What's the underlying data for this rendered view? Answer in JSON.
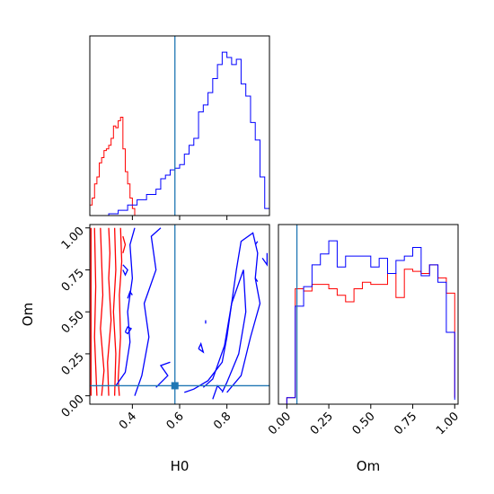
{
  "chart_data": {
    "type": "corner",
    "parameters": [
      "H0",
      "Om"
    ],
    "truth": {
      "H0": 0.58,
      "Om": 0.06
    },
    "colors": {
      "run_red": "#ff0000",
      "run_blue": "#0000ff",
      "truth_line": "#1f77b4",
      "axes": "#000000"
    },
    "panels": {
      "hist_H0": {
        "xlim": [
          0.22,
          0.98
        ],
        "ticks": [
          0.4,
          0.6,
          0.8
        ],
        "tick_labels_shown": false,
        "yticks": "none",
        "series": [
          {
            "color": "#ff0000",
            "bin_edges": [
              0.22,
              0.23,
              0.24,
              0.25,
              0.26,
              0.27,
              0.28,
              0.29,
              0.3,
              0.31,
              0.32,
              0.33,
              0.34,
              0.35,
              0.36,
              0.37,
              0.38,
              0.39,
              0.4,
              0.41
            ],
            "counts": [
              0.6,
              1.0,
              1.8,
              2.2,
              3.0,
              3.3,
              3.7,
              3.8,
              4.0,
              4.4,
              5.1,
              5.0,
              5.4,
              5.6,
              3.8,
              2.5,
              1.8,
              1.0,
              0.4
            ]
          },
          {
            "color": "#0000ff",
            "bin_edges": [
              0.3,
              0.34,
              0.38,
              0.42,
              0.46,
              0.5,
              0.52,
              0.54,
              0.56,
              0.58,
              0.6,
              0.62,
              0.64,
              0.66,
              0.68,
              0.7,
              0.72,
              0.74,
              0.76,
              0.78,
              0.8,
              0.82,
              0.84,
              0.86,
              0.88,
              0.9,
              0.92,
              0.94,
              0.96,
              0.98
            ],
            "counts": [
              0.1,
              0.3,
              0.6,
              0.9,
              1.2,
              1.5,
              2.1,
              2.3,
              2.6,
              2.7,
              2.9,
              3.5,
              4.0,
              4.4,
              5.9,
              6.3,
              7.0,
              7.8,
              8.6,
              9.3,
              9.0,
              8.6,
              8.9,
              7.5,
              6.8,
              5.3,
              4.3,
              2.2,
              0.4
            ]
          }
        ]
      },
      "hist_Om": {
        "xlim": [
          -0.05,
          1.02
        ],
        "ticks": [
          0.0,
          0.25,
          0.5,
          0.75,
          1.0
        ],
        "tick_labels": [
          "0.00",
          "0.25",
          "0.50",
          "0.75",
          "1.00"
        ],
        "xlabel": "Om",
        "yticks": "none",
        "series": [
          {
            "color": "#ff0000",
            "bin_edges": [
              0.0,
              0.05,
              0.1,
              0.15,
              0.2,
              0.25,
              0.3,
              0.35,
              0.4,
              0.45,
              0.5,
              0.55,
              0.6,
              0.65,
              0.7,
              0.75,
              0.8,
              0.85,
              0.9,
              0.95,
              1.0
            ],
            "counts": [
              0.3,
              5.3,
              5.2,
              5.5,
              5.5,
              5.3,
              5.0,
              4.7,
              5.3,
              5.6,
              5.5,
              5.5,
              6.0,
              4.9,
              6.2,
              6.1,
              6.0,
              6.4,
              5.8,
              5.1,
              0.3
            ]
          },
          {
            "color": "#0000ff",
            "bin_edges": [
              0.0,
              0.05,
              0.1,
              0.15,
              0.2,
              0.25,
              0.3,
              0.35,
              0.4,
              0.45,
              0.5,
              0.55,
              0.6,
              0.65,
              0.7,
              0.75,
              0.8,
              0.85,
              0.9,
              0.95,
              1.0
            ],
            "counts": [
              0.3,
              4.5,
              5.4,
              6.4,
              6.9,
              7.5,
              6.3,
              6.8,
              6.8,
              6.8,
              6.3,
              6.7,
              6.0,
              6.6,
              6.8,
              7.2,
              5.9,
              6.4,
              5.6,
              3.3,
              0.2
            ]
          }
        ]
      },
      "contour_H0_Om": {
        "xlim": [
          0.22,
          0.98
        ],
        "ylim": [
          -0.05,
          1.02
        ],
        "xticks": [
          0.4,
          0.6,
          0.8
        ],
        "xtick_labels": [
          "0.4",
          "0.6",
          "0.8"
        ],
        "yticks": [
          0.0,
          0.25,
          0.5,
          0.75,
          1.0
        ],
        "ytick_labels": [
          "0.00",
          "0.25",
          "0.50",
          "0.75",
          "1.00"
        ],
        "xlabel": "H0",
        "ylabel": "Om",
        "contours": [
          {
            "color": "#ff0000",
            "points": [
              [
                0.225,
                0.0
              ],
              [
                0.225,
                1.0
              ]
            ]
          },
          {
            "color": "#ff0000",
            "points": [
              [
                0.25,
                0.0
              ],
              [
                0.24,
                0.35
              ],
              [
                0.245,
                0.65
              ],
              [
                0.24,
                1.0
              ]
            ]
          },
          {
            "color": "#ff0000",
            "points": [
              [
                0.27,
                0.0
              ],
              [
                0.28,
                0.15
              ],
              [
                0.265,
                0.4
              ],
              [
                0.275,
                0.6
              ],
              [
                0.27,
                0.8
              ],
              [
                0.265,
                1.0
              ]
            ]
          },
          {
            "color": "#ff0000",
            "points": [
              [
                0.3,
                0.0
              ],
              [
                0.295,
                0.2
              ],
              [
                0.31,
                0.45
              ],
              [
                0.3,
                0.7
              ],
              [
                0.305,
                0.85
              ],
              [
                0.3,
                1.0
              ]
            ]
          },
          {
            "color": "#ff0000",
            "points": [
              [
                0.325,
                0.0
              ],
              [
                0.33,
                0.25
              ],
              [
                0.32,
                0.5
              ],
              [
                0.33,
                0.75
              ],
              [
                0.325,
                1.0
              ]
            ]
          },
          {
            "color": "#ff0000",
            "points": [
              [
                0.345,
                0.0
              ],
              [
                0.34,
                0.1
              ],
              [
                0.35,
                0.35
              ],
              [
                0.345,
                0.6
              ],
              [
                0.355,
                0.8
              ],
              [
                0.35,
                1.0
              ]
            ]
          },
          {
            "color": "#ff0000",
            "points": [
              [
                0.36,
                0.95
              ],
              [
                0.37,
                0.9
              ],
              [
                0.36,
                0.85
              ]
            ]
          },
          {
            "color": "#0000ff",
            "points": [
              [
                0.33,
                0.06
              ],
              [
                0.37,
                0.14
              ],
              [
                0.39,
                0.32
              ],
              [
                0.38,
                0.5
              ],
              [
                0.4,
                0.7
              ],
              [
                0.39,
                0.9
              ],
              [
                0.41,
                1.0
              ]
            ]
          },
          {
            "color": "#0000ff",
            "points": [
              [
                0.41,
                0.0
              ],
              [
                0.44,
                0.12
              ],
              [
                0.47,
                0.35
              ],
              [
                0.45,
                0.55
              ],
              [
                0.5,
                0.75
              ],
              [
                0.48,
                0.95
              ],
              [
                0.52,
                1.0
              ]
            ]
          },
          {
            "color": "#0000ff",
            "points": [
              [
                0.5,
                0.05
              ],
              [
                0.55,
                0.12
              ],
              [
                0.52,
                0.18
              ],
              [
                0.56,
                0.2
              ]
            ]
          },
          {
            "color": "#0000ff",
            "points": [
              [
                0.36,
                0.78
              ],
              [
                0.38,
                0.75
              ],
              [
                0.37,
                0.72
              ],
              [
                0.36,
                0.75
              ]
            ]
          },
          {
            "color": "#0000ff",
            "points": [
              [
                0.38,
                0.58
              ],
              [
                0.39,
                0.62
              ],
              [
                0.4,
                0.6
              ]
            ]
          },
          {
            "color": "#0000ff",
            "points": [
              [
                0.37,
                0.38
              ],
              [
                0.38,
                0.41
              ],
              [
                0.395,
                0.4
              ],
              [
                0.38,
                0.37
              ],
              [
                0.37,
                0.38
              ]
            ]
          },
          {
            "color": "#0000ff",
            "points": [
              [
                0.62,
                0.02
              ],
              [
                0.66,
                0.04
              ],
              [
                0.72,
                0.09
              ],
              [
                0.78,
                0.2
              ],
              [
                0.8,
                0.35
              ],
              [
                0.82,
                0.55
              ],
              [
                0.84,
                0.75
              ],
              [
                0.86,
                0.92
              ],
              [
                0.91,
                0.97
              ],
              [
                0.93,
                0.85
              ],
              [
                0.92,
                0.7
              ],
              [
                0.94,
                0.55
              ],
              [
                0.9,
                0.35
              ],
              [
                0.86,
                0.12
              ],
              [
                0.8,
                0.02
              ]
            ]
          },
          {
            "color": "#0000ff",
            "points": [
              [
                0.7,
                0.05
              ],
              [
                0.74,
                0.1
              ],
              [
                0.79,
                0.3
              ],
              [
                0.82,
                0.55
              ],
              [
                0.87,
                0.75
              ],
              [
                0.88,
                0.5
              ],
              [
                0.85,
                0.25
              ],
              [
                0.8,
                0.08
              ],
              [
                0.78,
                0.02
              ]
            ]
          },
          {
            "color": "#0000ff",
            "points": [
              [
                0.74,
                -0.02
              ],
              [
                0.76,
                0.06
              ],
              [
                0.78,
                0.03
              ]
            ]
          },
          {
            "color": "#0000ff",
            "points": [
              [
                0.95,
                0.82
              ],
              [
                0.97,
                0.78
              ],
              [
                0.97,
                0.85
              ]
            ]
          },
          {
            "color": "#0000ff",
            "points": [
              [
                0.92,
                0.9
              ],
              [
                0.93,
                0.92
              ]
            ]
          },
          {
            "color": "#0000ff",
            "points": [
              [
                0.92,
                0.7
              ],
              [
                0.93,
                0.68
              ]
            ]
          },
          {
            "color": "#0000ff",
            "points": [
              [
                0.71,
                0.45
              ],
              [
                0.71,
                0.43
              ]
            ]
          },
          {
            "color": "#0000ff",
            "points": [
              [
                0.68,
                0.28
              ],
              [
                0.69,
                0.31
              ],
              [
                0.7,
                0.26
              ],
              [
                0.68,
                0.28
              ]
            ]
          }
        ]
      }
    }
  }
}
